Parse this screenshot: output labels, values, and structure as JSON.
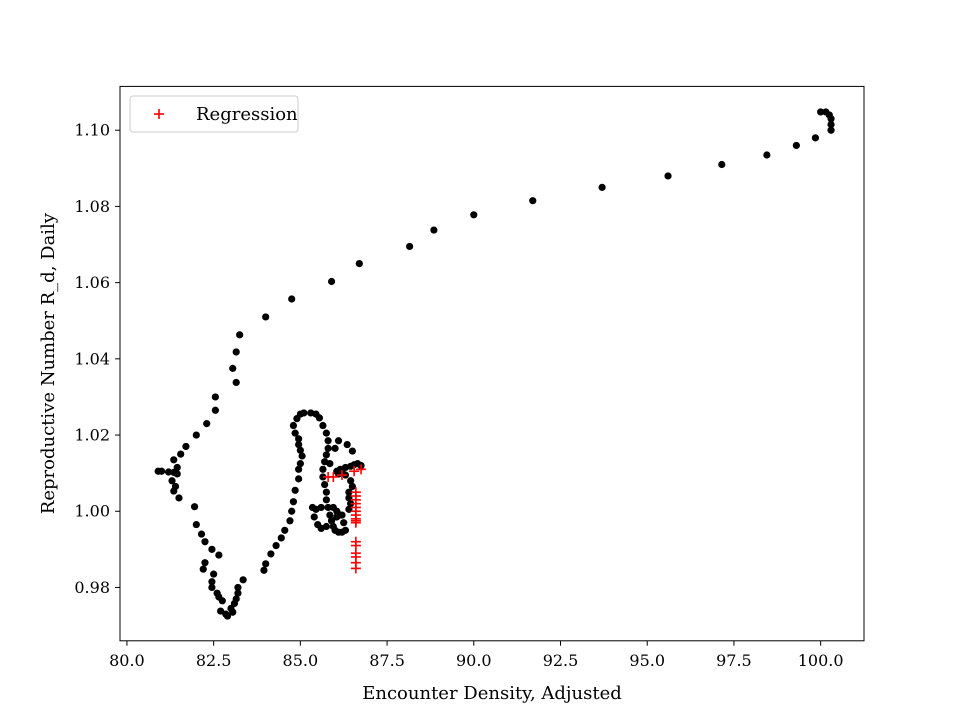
{
  "chart_data": {
    "type": "scatter",
    "title": "",
    "xlabel": "Encounter Density, Adjusted",
    "ylabel": "Reproductive Number R_d, Daily",
    "xlim": [
      79.8,
      101.25
    ],
    "ylim": [
      0.966,
      1.1115
    ],
    "xticks": [
      80.0,
      82.5,
      85.0,
      87.5,
      90.0,
      92.5,
      95.0,
      97.5,
      100.0
    ],
    "xtick_labels": [
      "80.0",
      "82.5",
      "85.0",
      "87.5",
      "90.0",
      "92.5",
      "95.0",
      "97.5",
      "100.0"
    ],
    "yticks": [
      0.98,
      1.0,
      1.02,
      1.04,
      1.06,
      1.08,
      1.1
    ],
    "ytick_labels": [
      "0.98",
      "1.00",
      "1.02",
      "1.04",
      "1.06",
      "1.08",
      "1.10"
    ],
    "grid": false,
    "legend_position": "top-left",
    "series": [
      {
        "name": "",
        "marker": "dot",
        "color": "#000000",
        "points": [
          [
            100.3,
            1.1
          ],
          [
            100.3,
            1.1015
          ],
          [
            100.3,
            1.103
          ],
          [
            100.25,
            1.104
          ],
          [
            100.15,
            1.1048
          ],
          [
            100.0,
            1.1048
          ],
          [
            99.85,
            1.098
          ],
          [
            99.3,
            1.096
          ],
          [
            98.45,
            1.0935
          ],
          [
            97.15,
            1.091
          ],
          [
            95.6,
            1.088
          ],
          [
            93.7,
            1.085
          ],
          [
            91.7,
            1.0815
          ],
          [
            90.0,
            1.0778
          ],
          [
            88.85,
            1.0738
          ],
          [
            88.15,
            1.0695
          ],
          [
            86.7,
            1.065
          ],
          [
            85.9,
            1.0603
          ],
          [
            84.75,
            1.0557
          ],
          [
            84.0,
            1.051
          ],
          [
            83.25,
            1.0463
          ],
          [
            83.15,
            1.0418
          ],
          [
            83.05,
            1.0375
          ],
          [
            83.15,
            1.0338
          ],
          [
            82.55,
            1.03
          ],
          [
            82.55,
            1.0265
          ],
          [
            82.3,
            1.023
          ],
          [
            82.0,
            1.02
          ],
          [
            81.7,
            1.017
          ],
          [
            81.55,
            1.015
          ],
          [
            81.35,
            1.0135
          ],
          [
            81.45,
            1.0115
          ],
          [
            81.45,
            1.0098
          ],
          [
            81.35,
            1.0102
          ],
          [
            81.2,
            1.0103
          ],
          [
            81.0,
            1.0105
          ],
          [
            80.9,
            1.0105
          ],
          [
            81.3,
            1.008
          ],
          [
            81.4,
            1.0065
          ],
          [
            81.35,
            1.0053
          ],
          [
            81.5,
            1.0035
          ],
          [
            81.95,
            1.0012
          ],
          [
            82.0,
            0.9965
          ],
          [
            82.15,
            0.994
          ],
          [
            82.25,
            0.992
          ],
          [
            82.45,
            0.99
          ],
          [
            82.65,
            0.9885
          ],
          [
            82.25,
            0.9865
          ],
          [
            82.2,
            0.9848
          ],
          [
            82.5,
            0.9835
          ],
          [
            82.45,
            0.9815
          ],
          [
            82.45,
            0.98
          ],
          [
            82.6,
            0.9785
          ],
          [
            82.65,
            0.9775
          ],
          [
            82.75,
            0.9765
          ],
          [
            82.7,
            0.9738
          ],
          [
            82.85,
            0.973
          ],
          [
            82.9,
            0.9725
          ],
          [
            83.05,
            0.9735
          ],
          [
            83.0,
            0.9745
          ],
          [
            83.1,
            0.9758
          ],
          [
            83.15,
            0.977
          ],
          [
            83.2,
            0.9785
          ],
          [
            83.2,
            0.98
          ],
          [
            83.35,
            0.982
          ],
          [
            83.95,
            0.9845
          ],
          [
            84.0,
            0.9862
          ],
          [
            84.15,
            0.9888
          ],
          [
            84.3,
            0.991
          ],
          [
            84.45,
            0.993
          ],
          [
            84.55,
            0.995
          ],
          [
            84.7,
            0.9975
          ],
          [
            84.75,
            1.0
          ],
          [
            84.8,
            1.0025
          ],
          [
            84.85,
            1.0055
          ],
          [
            84.95,
            1.0085
          ],
          [
            84.95,
            1.011
          ],
          [
            85.0,
            1.0125
          ],
          [
            85.05,
            1.0145
          ],
          [
            85.0,
            1.016
          ],
          [
            84.95,
            1.0175
          ],
          [
            84.95,
            1.019
          ],
          [
            84.85,
            1.0205
          ],
          [
            84.8,
            1.0225
          ],
          [
            84.9,
            1.0243
          ],
          [
            85.0,
            1.0255
          ],
          [
            85.1,
            1.0258
          ],
          [
            85.3,
            1.0258
          ],
          [
            85.45,
            1.0255
          ],
          [
            85.55,
            1.0245
          ],
          [
            85.65,
            1.0225
          ],
          [
            85.75,
            1.0205
          ],
          [
            85.8,
            1.0185
          ],
          [
            85.8,
            1.0165
          ],
          [
            85.75,
            1.0148
          ],
          [
            85.7,
            1.013
          ],
          [
            85.65,
            1.011
          ],
          [
            85.65,
            1.009
          ],
          [
            85.7,
            1.007
          ],
          [
            85.75,
            1.005
          ],
          [
            85.75,
            1.003
          ],
          [
            85.8,
            1.001
          ],
          [
            85.85,
            0.999
          ],
          [
            85.9,
            0.9975
          ],
          [
            85.95,
            0.996
          ],
          [
            86.0,
            0.995
          ],
          [
            86.1,
            0.9945
          ],
          [
            86.2,
            0.9945
          ],
          [
            86.3,
            0.995
          ],
          [
            86.25,
            0.997
          ],
          [
            86.15,
            0.999
          ],
          [
            86.05,
            1.0
          ],
          [
            85.95,
            1.001
          ],
          [
            85.6,
            1.001
          ],
          [
            85.45,
            1.0005
          ],
          [
            85.35,
            1.001
          ],
          [
            85.4,
            0.9985
          ],
          [
            85.5,
            0.9965
          ],
          [
            85.6,
            0.9955
          ],
          [
            85.75,
            0.996
          ],
          [
            85.9,
            0.9975
          ],
          [
            86.05,
            0.9985
          ],
          [
            86.2,
            0.999
          ],
          [
            86.4,
            1.0005
          ],
          [
            86.45,
            1.002
          ],
          [
            86.4,
            1.0035
          ],
          [
            86.4,
            1.005
          ],
          [
            86.5,
            1.0065
          ],
          [
            86.45,
            1.008
          ],
          [
            86.3,
            1.0095
          ],
          [
            86.2,
            1.0105
          ],
          [
            86.1,
            1.0098
          ],
          [
            86.05,
            1.0105
          ],
          [
            86.15,
            1.011
          ],
          [
            86.3,
            1.0115
          ],
          [
            86.45,
            1.0118
          ],
          [
            86.55,
            1.0122
          ],
          [
            86.65,
            1.0125
          ],
          [
            86.75,
            1.012
          ],
          [
            86.5,
            1.0158
          ],
          [
            86.35,
            1.0175
          ],
          [
            86.1,
            1.0185
          ],
          [
            86.0,
            1.0165
          ],
          [
            85.85,
            1.0125
          ]
        ]
      },
      {
        "name": "Regression",
        "marker": "plus",
        "color": "#ff0000",
        "points": [
          [
            85.8,
            1.009
          ],
          [
            85.95,
            1.009
          ],
          [
            86.2,
            1.0095
          ],
          [
            86.55,
            1.0105
          ],
          [
            86.75,
            1.011
          ],
          [
            86.6,
            1.005
          ],
          [
            86.6,
            1.004
          ],
          [
            86.6,
            1.003
          ],
          [
            86.6,
            1.002
          ],
          [
            86.6,
            1.001
          ],
          [
            86.6,
            1.0
          ],
          [
            86.6,
            0.999
          ],
          [
            86.6,
            0.998
          ],
          [
            86.6,
            0.997
          ],
          [
            86.6,
            0.9975
          ],
          [
            86.6,
            0.992
          ],
          [
            86.6,
            0.991
          ],
          [
            86.6,
            0.989
          ],
          [
            86.6,
            0.988
          ],
          [
            86.6,
            0.9865
          ],
          [
            86.6,
            0.985
          ]
        ]
      }
    ]
  }
}
